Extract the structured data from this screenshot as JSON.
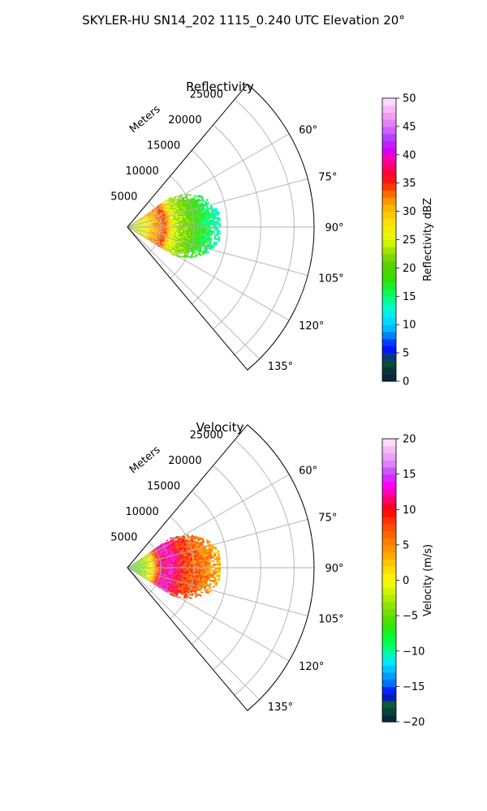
{
  "figure": {
    "suptitle": "SKYLER-HU  SN14_202  1115_0.240 UTC Elevation 20°"
  },
  "chart_data": [
    {
      "type": "heatmap",
      "projection": "polar-sector",
      "title": "Reflectivity",
      "range_label": "Meters",
      "azimuth_range": [
        40,
        140
      ],
      "range_max": 28000,
      "range_ticks": [
        {
          "value": 5000,
          "label": "5000"
        },
        {
          "value": 10000,
          "label": "10000"
        },
        {
          "value": 15000,
          "label": "15000"
        },
        {
          "value": 20000,
          "label": "20000"
        },
        {
          "value": 25000,
          "label": "25000"
        }
      ],
      "azimuth_ticks": [
        {
          "value": 60,
          "label": "60°"
        },
        {
          "value": 75,
          "label": "75°"
        },
        {
          "value": 90,
          "label": "90°"
        },
        {
          "value": 105,
          "label": "105°"
        },
        {
          "value": 120,
          "label": "120°"
        },
        {
          "value": 135,
          "label": "135°"
        }
      ],
      "grid": true,
      "data_extent": {
        "az_min": 55,
        "az_max": 122,
        "range_max_m": 14000
      },
      "colorbar": {
        "label": "Reflectivity dBZ",
        "min": 0,
        "max": 50,
        "ticks": [
          {
            "value": 0,
            "label": "0"
          },
          {
            "value": 5,
            "label": "5"
          },
          {
            "value": 10,
            "label": "10"
          },
          {
            "value": 15,
            "label": "15"
          },
          {
            "value": 20,
            "label": "20"
          },
          {
            "value": 25,
            "label": "25"
          },
          {
            "value": 30,
            "label": "30"
          },
          {
            "value": 35,
            "label": "35"
          },
          {
            "value": 40,
            "label": "40"
          },
          {
            "value": 45,
            "label": "45"
          },
          {
            "value": 50,
            "label": "50"
          }
        ],
        "stops": [
          {
            "v": 0,
            "color": "#0a1a4a"
          },
          {
            "v": 2,
            "color": "#063a34"
          },
          {
            "v": 4,
            "color": "#0b5a3a"
          },
          {
            "v": 5,
            "color": "#0000ff"
          },
          {
            "v": 7,
            "color": "#0040ff"
          },
          {
            "v": 9,
            "color": "#00b0ff"
          },
          {
            "v": 11,
            "color": "#00e0ff"
          },
          {
            "v": 13,
            "color": "#00ffd0"
          },
          {
            "v": 15,
            "color": "#00ff70"
          },
          {
            "v": 18,
            "color": "#30e000"
          },
          {
            "v": 21,
            "color": "#60d000"
          },
          {
            "v": 23,
            "color": "#a0e000"
          },
          {
            "v": 25,
            "color": "#e0ff00"
          },
          {
            "v": 28,
            "color": "#ffe000"
          },
          {
            "v": 31,
            "color": "#ffb000"
          },
          {
            "v": 33,
            "color": "#ff7000"
          },
          {
            "v": 35,
            "color": "#ff2000"
          },
          {
            "v": 37,
            "color": "#ff0040"
          },
          {
            "v": 39,
            "color": "#ff00a0"
          },
          {
            "v": 41,
            "color": "#d000ff"
          },
          {
            "v": 43,
            "color": "#b040ff"
          },
          {
            "v": 45,
            "color": "#e070ff"
          },
          {
            "v": 47,
            "color": "#f0a0f0"
          },
          {
            "v": 50,
            "color": "#ffe8ff"
          }
        ]
      },
      "field_profile": [
        {
          "r": 0,
          "v": 24
        },
        {
          "r": 2000,
          "v": 25
        },
        {
          "r": 4000,
          "v": 31
        },
        {
          "r": 5500,
          "v": 34
        },
        {
          "r": 7000,
          "v": 24
        },
        {
          "r": 9000,
          "v": 21
        },
        {
          "r": 11000,
          "v": 17
        },
        {
          "r": 13000,
          "v": 14
        },
        {
          "r": 14000,
          "v": 13
        }
      ]
    },
    {
      "type": "heatmap",
      "projection": "polar-sector",
      "title": "Velocity",
      "range_label": "Meters",
      "azimuth_range": [
        40,
        140
      ],
      "range_max": 28000,
      "range_ticks": [
        {
          "value": 5000,
          "label": "5000"
        },
        {
          "value": 10000,
          "label": "10000"
        },
        {
          "value": 15000,
          "label": "15000"
        },
        {
          "value": 20000,
          "label": "20000"
        },
        {
          "value": 25000,
          "label": "25000"
        }
      ],
      "azimuth_ticks": [
        {
          "value": 60,
          "label": "60°"
        },
        {
          "value": 75,
          "label": "75°"
        },
        {
          "value": 90,
          "label": "90°"
        },
        {
          "value": 105,
          "label": "105°"
        },
        {
          "value": 120,
          "label": "120°"
        },
        {
          "value": 135,
          "label": "135°"
        }
      ],
      "grid": true,
      "data_extent": {
        "az_min": 55,
        "az_max": 122,
        "range_max_m": 14000
      },
      "colorbar": {
        "label": "Velocity (m/s)",
        "min": -20,
        "max": 20,
        "ticks": [
          {
            "value": -20,
            "label": "−20"
          },
          {
            "value": -15,
            "label": "−15"
          },
          {
            "value": -10,
            "label": "−10"
          },
          {
            "value": -5,
            "label": "−5"
          },
          {
            "value": 0,
            "label": "0"
          },
          {
            "value": 5,
            "label": "5"
          },
          {
            "value": 10,
            "label": "10"
          },
          {
            "value": 15,
            "label": "15"
          },
          {
            "value": 20,
            "label": "20"
          }
        ],
        "stops": [
          {
            "v": -20,
            "color": "#0a1a4a"
          },
          {
            "v": -19,
            "color": "#063a34"
          },
          {
            "v": -17.5,
            "color": "#0b5a3a"
          },
          {
            "v": -16,
            "color": "#0000ff"
          },
          {
            "v": -14.5,
            "color": "#0070ff"
          },
          {
            "v": -13,
            "color": "#00b0ff"
          },
          {
            "v": -11.5,
            "color": "#00e8ff"
          },
          {
            "v": -10,
            "color": "#00ff90"
          },
          {
            "v": -8,
            "color": "#00ff30"
          },
          {
            "v": -6,
            "color": "#40e000"
          },
          {
            "v": -4,
            "color": "#80e000"
          },
          {
            "v": -2,
            "color": "#c0f000"
          },
          {
            "v": 0,
            "color": "#ffff00"
          },
          {
            "v": 2,
            "color": "#ffd000"
          },
          {
            "v": 4,
            "color": "#ffa000"
          },
          {
            "v": 6,
            "color": "#ff7000"
          },
          {
            "v": 8,
            "color": "#ff4000"
          },
          {
            "v": 10,
            "color": "#ff0000"
          },
          {
            "v": 12,
            "color": "#ff0090"
          },
          {
            "v": 13.5,
            "color": "#ff00ff"
          },
          {
            "v": 15,
            "color": "#c040ff"
          },
          {
            "v": 16.5,
            "color": "#e080ff"
          },
          {
            "v": 18,
            "color": "#f0b0f0"
          },
          {
            "v": 20,
            "color": "#ffe8ff"
          }
        ]
      },
      "field_profile": [
        {
          "r": 0,
          "v": -6
        },
        {
          "r": 2000,
          "v": -4
        },
        {
          "r": 3500,
          "v": 0
        },
        {
          "r": 5000,
          "v": 12
        },
        {
          "r": 6500,
          "v": 13
        },
        {
          "r": 8000,
          "v": 9
        },
        {
          "r": 10000,
          "v": 7
        },
        {
          "r": 12000,
          "v": 5
        },
        {
          "r": 14000,
          "v": 3
        }
      ]
    }
  ]
}
